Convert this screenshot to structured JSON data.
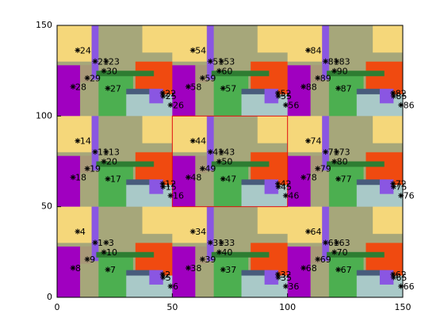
{
  "chart_data": {
    "type": "scatter",
    "labels": [
      "1",
      "2",
      "3",
      "4",
      "5",
      "6",
      "7",
      "8",
      "9",
      "10",
      "11",
      "12",
      "13",
      "14",
      "15",
      "16",
      "17",
      "18",
      "19",
      "20",
      "21",
      "22",
      "23",
      "24",
      "25",
      "26",
      "27",
      "28",
      "29",
      "30",
      "31",
      "32",
      "33",
      "34",
      "35",
      "36",
      "37",
      "38",
      "39",
      "40",
      "41",
      "42",
      "43",
      "44",
      "45",
      "46",
      "47",
      "48",
      "49",
      "50",
      "51",
      "52",
      "53",
      "54",
      "55",
      "56",
      "57",
      "58",
      "59",
      "60",
      "61",
      "62",
      "63",
      "64",
      "65",
      "66",
      "67",
      "68",
      "69",
      "70",
      "71",
      "72",
      "73",
      "74",
      "75",
      "76",
      "77",
      "78",
      "79",
      "80",
      "81",
      "82",
      "83",
      "84",
      "85",
      "86",
      "87",
      "88",
      "89",
      "90"
    ],
    "x": [
      16.5,
      45.8,
      21.3,
      8.9,
      46.0,
      49.2,
      22.0,
      6.9,
      13.1,
      20.3,
      16.5,
      45.8,
      21.3,
      8.9,
      46.0,
      49.2,
      22.0,
      6.9,
      13.1,
      20.3,
      16.5,
      45.8,
      21.3,
      8.9,
      46.0,
      49.2,
      22.0,
      6.9,
      13.1,
      20.3,
      66.5,
      95.8,
      71.3,
      58.9,
      96.0,
      99.2,
      72.0,
      56.9,
      63.1,
      70.3,
      66.5,
      95.8,
      71.3,
      58.9,
      96.0,
      99.2,
      72.0,
      56.9,
      63.1,
      70.3,
      66.5,
      95.8,
      71.3,
      58.9,
      96.0,
      99.2,
      72.0,
      56.9,
      63.1,
      70.3,
      116.5,
      145.8,
      121.3,
      108.9,
      146.0,
      149.2,
      122.0,
      106.9,
      113.1,
      120.3,
      116.5,
      145.8,
      121.3,
      108.9,
      146.0,
      149.2,
      122.0,
      106.9,
      113.1,
      120.3,
      116.5,
      145.8,
      121.3,
      108.9,
      146.0,
      149.2,
      122.0,
      106.9,
      113.1,
      120.3
    ],
    "y": [
      30.2,
      12.7,
      30.2,
      36.3,
      11.0,
      6.1,
      15.3,
      16.2,
      21.0,
      24.9,
      80.2,
      62.7,
      80.2,
      86.3,
      61.0,
      56.1,
      65.3,
      66.2,
      71.0,
      74.9,
      130.2,
      112.7,
      130.2,
      136.3,
      111.0,
      106.1,
      115.3,
      116.2,
      121.0,
      124.9,
      30.2,
      12.7,
      30.2,
      36.3,
      11.0,
      6.1,
      15.3,
      16.2,
      21.0,
      24.9,
      80.2,
      62.7,
      80.2,
      86.3,
      61.0,
      56.1,
      65.3,
      66.2,
      71.0,
      74.9,
      130.2,
      112.7,
      130.2,
      136.3,
      111.0,
      106.1,
      115.3,
      116.2,
      121.0,
      124.9,
      30.2,
      12.7,
      30.2,
      36.3,
      11.0,
      6.1,
      15.3,
      16.2,
      21.0,
      24.9,
      80.2,
      62.7,
      80.2,
      86.3,
      61.0,
      56.1,
      65.3,
      66.2,
      71.0,
      74.9,
      130.2,
      112.7,
      130.2,
      136.3,
      111.0,
      106.1,
      115.3,
      116.2,
      121.0,
      124.9
    ],
    "color": "#000000",
    "xlim": [
      0,
      150
    ],
    "ylim": [
      0,
      150
    ],
    "xticks": [
      0,
      50,
      100,
      150
    ],
    "yticks": [
      0,
      50,
      100,
      150
    ],
    "highlight_box": {
      "xlim": [
        50,
        100
      ],
      "ylim": [
        50,
        100
      ],
      "color": "#e01010"
    }
  }
}
